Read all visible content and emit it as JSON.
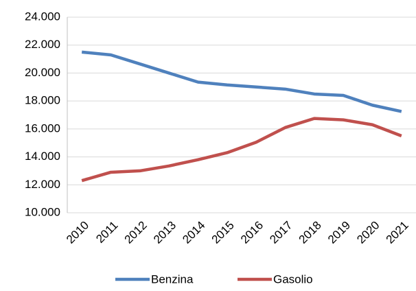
{
  "chart_data": {
    "type": "line",
    "categories": [
      "2010",
      "2011",
      "2012",
      "2013",
      "2014",
      "2015",
      "2016",
      "2017",
      "2018",
      "2019",
      "2020",
      "2021"
    ],
    "series": [
      {
        "name": "Benzina",
        "color": "#4f81bd",
        "values": [
          21500,
          21300,
          20650,
          20000,
          19350,
          19150,
          19000,
          18850,
          18500,
          18400,
          17700,
          17250
        ]
      },
      {
        "name": "Gasolio",
        "color": "#c0504d",
        "values": [
          12300,
          12900,
          13000,
          13350,
          13800,
          14300,
          15050,
          16100,
          16750,
          16650,
          16300,
          15500
        ]
      }
    ],
    "ylim": [
      10000,
      24000
    ],
    "yticks": [
      {
        "value": 10000,
        "label": "10.000"
      },
      {
        "value": 12000,
        "label": "12.000"
      },
      {
        "value": 14000,
        "label": "14.000"
      },
      {
        "value": 16000,
        "label": "16.000"
      },
      {
        "value": 18000,
        "label": "18.000"
      },
      {
        "value": 20000,
        "label": "20.000"
      },
      {
        "value": 22000,
        "label": "22.000"
      },
      {
        "value": 24000,
        "label": "24.000"
      }
    ],
    "grid": true,
    "legend": "bottom"
  }
}
